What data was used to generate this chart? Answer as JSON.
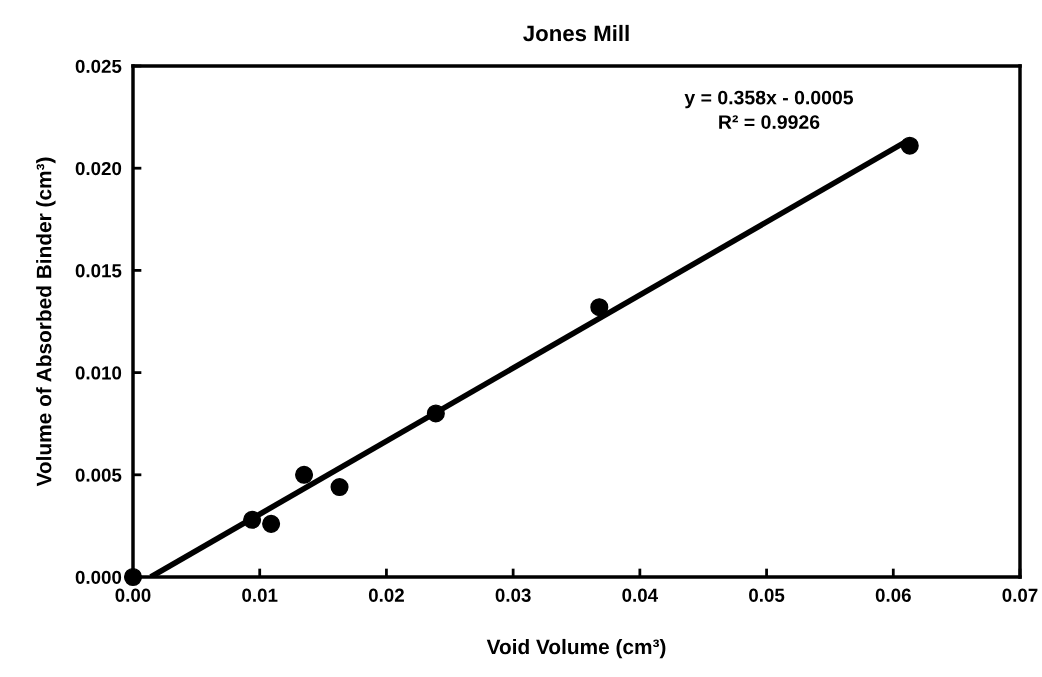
{
  "chart_data": {
    "type": "scatter",
    "title": "Jones Mill",
    "xlabel": "Void Volume (cm³)",
    "ylabel": "Volume of Absorbed Binder (cm³)",
    "xlim": [
      0,
      0.07
    ],
    "xticks": [
      {
        "value": 0,
        "label": "0.00"
      },
      {
        "value": 0.01,
        "label": "0.01"
      },
      {
        "value": 0.02,
        "label": "0.02"
      },
      {
        "value": 0.03,
        "label": "0.03"
      },
      {
        "value": 0.04,
        "label": "0.04"
      },
      {
        "value": 0.05,
        "label": "0.05"
      },
      {
        "value": 0.06,
        "label": "0.06"
      },
      {
        "value": 0.07,
        "label": "0.07"
      }
    ],
    "ylim": [
      0,
      0.025
    ],
    "yticks": [
      {
        "value": 0,
        "label": "0.000"
      },
      {
        "value": 0.005,
        "label": "0.005"
      },
      {
        "value": 0.01,
        "label": "0.010"
      },
      {
        "value": 0.015,
        "label": "0.015"
      },
      {
        "value": 0.02,
        "label": "0.020"
      },
      {
        "value": 0.025,
        "label": "0.025"
      }
    ],
    "grid": false,
    "series": [
      {
        "marker": "circle",
        "color": "#000000",
        "x": [
          0.0,
          0.0094,
          0.0109,
          0.0135,
          0.0163,
          0.0239,
          0.0368,
          0.0613
        ],
        "values": [
          0.0,
          0.0028,
          0.0026,
          0.005,
          0.0044,
          0.008,
          0.0132,
          0.0211
        ]
      },
      {
        "type": "line",
        "color": "#000000",
        "line_style": "solid",
        "x": [
          0.0014,
          0.061
        ],
        "values": [
          0.0,
          0.0213
        ]
      }
    ],
    "annotations": [
      "y = 0.358x - 0.0005",
      "R² = 0.9926"
    ]
  }
}
